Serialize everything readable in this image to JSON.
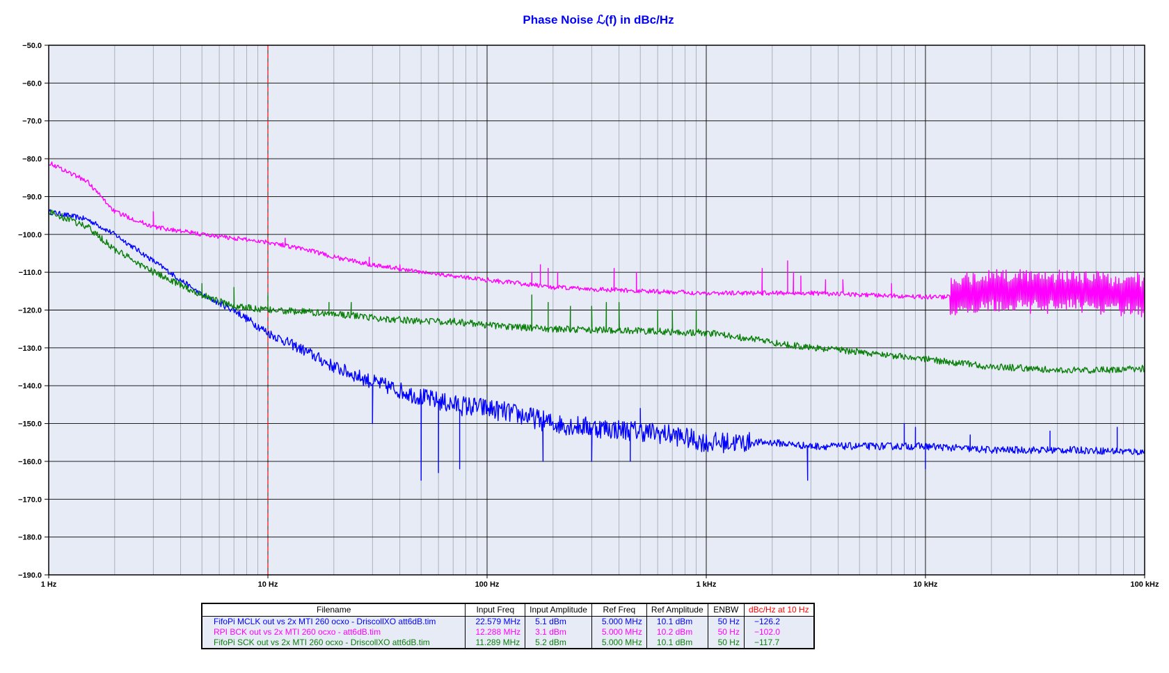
{
  "chart_data": {
    "type": "line",
    "title": "Phase Noise ℒ(f) in dBc/Hz",
    "x_scale": "log",
    "xlim": [
      1,
      100000
    ],
    "ylim": [
      -190,
      -50
    ],
    "x_ticks": [
      {
        "value": 1,
        "label": "1 Hz"
      },
      {
        "value": 10,
        "label": "10 Hz"
      },
      {
        "value": 100,
        "label": "100 Hz"
      },
      {
        "value": 1000,
        "label": "1 kHz"
      },
      {
        "value": 10000,
        "label": "10 kHz"
      },
      {
        "value": 100000,
        "label": "100 kHz"
      }
    ],
    "y_ticks": [
      {
        "value": -50,
        "label": "−50.0"
      },
      {
        "value": -60,
        "label": "−60.0"
      },
      {
        "value": -70,
        "label": "−70.0"
      },
      {
        "value": -80,
        "label": "−80.0"
      },
      {
        "value": -90,
        "label": "−90.0"
      },
      {
        "value": -100,
        "label": "−100.0"
      },
      {
        "value": -110,
        "label": "−110.0"
      },
      {
        "value": -120,
        "label": "−120.0"
      },
      {
        "value": -130,
        "label": "−130.0"
      },
      {
        "value": -140,
        "label": "−140.0"
      },
      {
        "value": -150,
        "label": "−150.0"
      },
      {
        "value": -160,
        "label": "−160.0"
      },
      {
        "value": -170,
        "label": "−170.0"
      },
      {
        "value": -180,
        "label": "−180.0"
      },
      {
        "value": -190,
        "label": "−190.0"
      }
    ],
    "grid": true,
    "marker_line": {
      "x": 10,
      "color": "#ff0000",
      "style": "dashed"
    },
    "colors": {
      "plot_bg": "#e6ebf5",
      "grid_major": "#000000",
      "grid_minor": "#9aa4b4",
      "title": "#0000ff"
    },
    "series": [
      {
        "name": "FifoPi MCLK out vs 2x MTI 260 ocxo - DriscollXO att6dB.tim",
        "color": "#0000ff",
        "x": [
          1,
          1.5,
          2,
          3,
          5,
          7,
          10,
          15,
          20,
          30,
          50,
          70,
          100,
          150,
          200,
          300,
          500,
          700,
          1000,
          1500,
          2000,
          3000,
          5000,
          7000,
          10000,
          20000,
          50000,
          100000
        ],
        "y": [
          -94,
          -96,
          -100,
          -107,
          -116,
          -120,
          -126,
          -131,
          -135,
          -139,
          -143,
          -145,
          -146,
          -148,
          -150,
          -151,
          -152,
          -153,
          -155,
          -155,
          -155,
          -156,
          -156,
          -156,
          -156,
          -157,
          -157,
          -157.5
        ],
        "noise": 5.5,
        "spurs": [
          {
            "x": 50,
            "dip": -165
          },
          {
            "x": 60,
            "dip": -163
          },
          {
            "x": 75,
            "dip": -162
          },
          {
            "x": 180,
            "dip": -160
          },
          {
            "x": 300,
            "dip": -160
          },
          {
            "x": 450,
            "dip": -160
          },
          {
            "x": 2900,
            "dip": -165
          },
          {
            "x": 10000,
            "dip": -162
          },
          {
            "x": 30,
            "peak": -150
          },
          {
            "x": 500,
            "peak": -146
          },
          {
            "x": 8000,
            "peak": -150
          },
          {
            "x": 9000,
            "peak": -151
          },
          {
            "x": 16000,
            "peak": -153
          },
          {
            "x": 37000,
            "peak": -152
          },
          {
            "x": 75000,
            "peak": -151
          }
        ]
      },
      {
        "name": "RPI BCK out vs 2x MTI 260 ocxo - att6dB.tim",
        "color": "#ff00ff",
        "x": [
          1,
          1.5,
          2,
          3,
          5,
          7,
          10,
          15,
          20,
          30,
          50,
          70,
          100,
          200,
          500,
          1000,
          2000,
          3000,
          5000,
          10000,
          13000,
          20000,
          50000,
          100000
        ],
        "y": [
          -81,
          -86,
          -94,
          -98,
          -100,
          -101,
          -102,
          -104,
          -106,
          -108,
          -110,
          -111,
          -112,
          -114,
          -115,
          -115.5,
          -115.5,
          -115.5,
          -116,
          -116.5,
          -116.5,
          -115,
          -115,
          -116
        ],
        "noise": 1.2,
        "spurs": [
          {
            "x": 3,
            "peak": -94
          },
          {
            "x": 12,
            "peak": -101
          },
          {
            "x": 29,
            "peak": -106
          },
          {
            "x": 40,
            "peak": -108
          },
          {
            "x": 160,
            "peak": -110
          },
          {
            "x": 175,
            "peak": -108
          },
          {
            "x": 190,
            "peak": -109
          },
          {
            "x": 210,
            "peak": -110
          },
          {
            "x": 380,
            "peak": -109
          },
          {
            "x": 480,
            "peak": -110
          },
          {
            "x": 1800,
            "peak": -109
          },
          {
            "x": 2350,
            "peak": -107
          },
          {
            "x": 2500,
            "peak": -110
          },
          {
            "x": 2700,
            "peak": -111
          },
          {
            "x": 3500,
            "peak": -112
          },
          {
            "x": 4200,
            "peak": -112
          },
          {
            "x": 7000,
            "peak": -113
          }
        ],
        "comb": {
          "from": 13000,
          "to": 100000,
          "amplitude": 5.5,
          "density": 90
        }
      },
      {
        "name": "FifoPi SCK out vs 2x MTI 260 ocxo - DriscollXO att6dB.tim",
        "color": "#0a7f0a",
        "x": [
          1,
          1.5,
          2,
          3,
          5,
          7,
          10,
          15,
          20,
          30,
          50,
          70,
          100,
          200,
          500,
          1000,
          2000,
          3000,
          5000,
          10000,
          20000,
          50000,
          100000
        ],
        "y": [
          -94,
          -98,
          -104,
          -110,
          -116,
          -119,
          -120,
          -120.5,
          -121,
          -122,
          -123,
          -123,
          -124,
          -125,
          -125.5,
          -126,
          -128.5,
          -130,
          -131,
          -133,
          -135,
          -136,
          -135.5
        ],
        "noise": 1.8,
        "spurs": [
          {
            "x": 5,
            "peak": -113
          },
          {
            "x": 7,
            "peak": -114
          },
          {
            "x": 10,
            "peak": -116
          },
          {
            "x": 19,
            "peak": -118
          },
          {
            "x": 24,
            "peak": -118
          },
          {
            "x": 160,
            "peak": -116
          },
          {
            "x": 190,
            "peak": -118
          },
          {
            "x": 240,
            "peak": -119
          },
          {
            "x": 300,
            "peak": -119
          },
          {
            "x": 350,
            "peak": -118
          },
          {
            "x": 400,
            "peak": -118
          },
          {
            "x": 600,
            "peak": -120
          },
          {
            "x": 700,
            "peak": -120
          },
          {
            "x": 900,
            "peak": -120
          }
        ]
      }
    ]
  },
  "legend_table": {
    "headers": [
      "Filename",
      "Input Freq",
      "Input Amplitude",
      "Ref Freq",
      "Ref Amplitude",
      "ENBW",
      "dBc/Hz at 10 Hz"
    ],
    "header_colors": [
      "#000000",
      "#000000",
      "#000000",
      "#000000",
      "#000000",
      "#000000",
      "#ff0000"
    ],
    "rows": [
      {
        "color": "#0000ff",
        "cells": [
          "FifoPi MCLK out vs 2x MTI 260 ocxo - DriscollXO att6dB.tim",
          "22.579 MHz",
          "5.1 dBm",
          "5.000 MHz",
          "10.1 dBm",
          "50 Hz",
          "−126.2"
        ]
      },
      {
        "color": "#ff00ff",
        "cells": [
          "RPI BCK out vs 2x MTI 260 ocxo - att6dB.tim",
          "12.288 MHz",
          "3.1 dBm",
          "5.000 MHz",
          "10.2 dBm",
          "50 Hz",
          "−102.0"
        ]
      },
      {
        "color": "#0a7f0a",
        "cells": [
          "FifoPi SCK out vs 2x MTI 260 ocxo - DriscollXO att6dB.tim",
          "11.289 MHz",
          "5.2 dBm",
          "5.000 MHz",
          "10.1 dBm",
          "50 Hz",
          "−117.7"
        ]
      }
    ]
  }
}
